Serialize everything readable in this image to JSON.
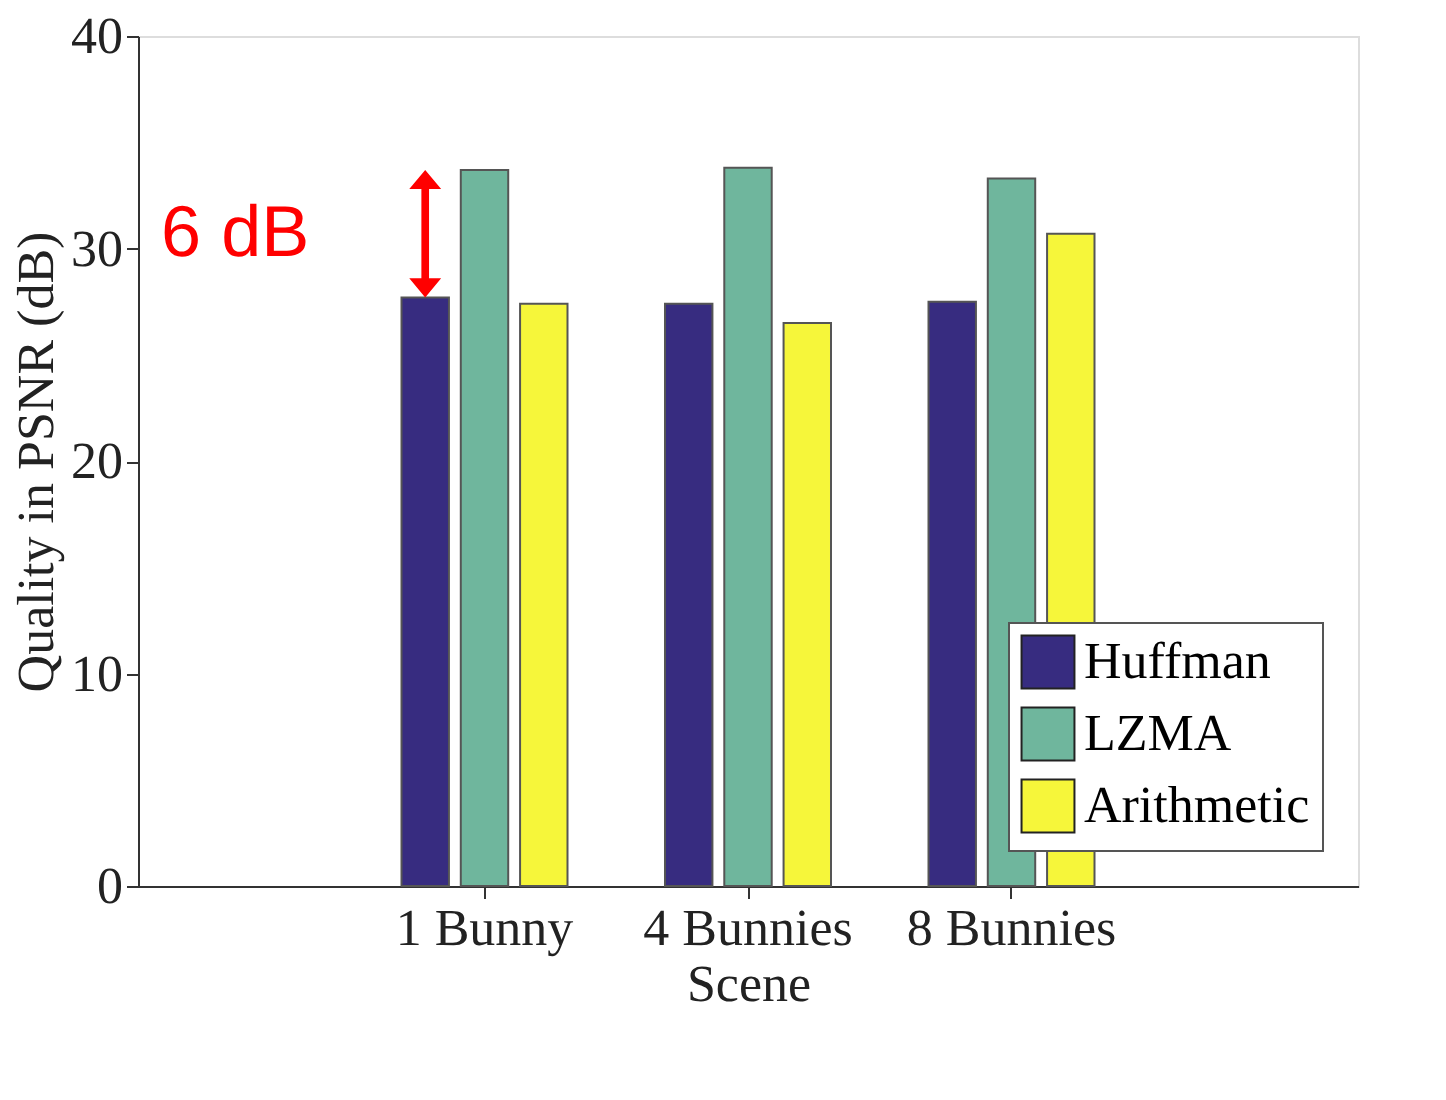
{
  "chart_data": {
    "type": "bar",
    "xlabel": "Scene",
    "ylabel": "Quality in PSNR (dB)",
    "categories": [
      "1 Bunny",
      "4 Bunnies",
      "8 Bunnies"
    ],
    "series": [
      {
        "name": "Huffman",
        "color": "#372c80",
        "values": [
          27.7,
          27.4,
          27.5
        ]
      },
      {
        "name": "LZMA",
        "color": "#6fb69d",
        "values": [
          33.7,
          33.8,
          33.3
        ]
      },
      {
        "name": "Arithmetic",
        "color": "#f6f63a",
        "values": [
          27.4,
          26.5,
          30.7
        ]
      }
    ],
    "ylim": [
      0,
      40
    ],
    "yticks": [
      0,
      10,
      20,
      30,
      40
    ],
    "grid": false,
    "legend": "bottom right",
    "annotations": [
      "6 dB"
    ]
  }
}
